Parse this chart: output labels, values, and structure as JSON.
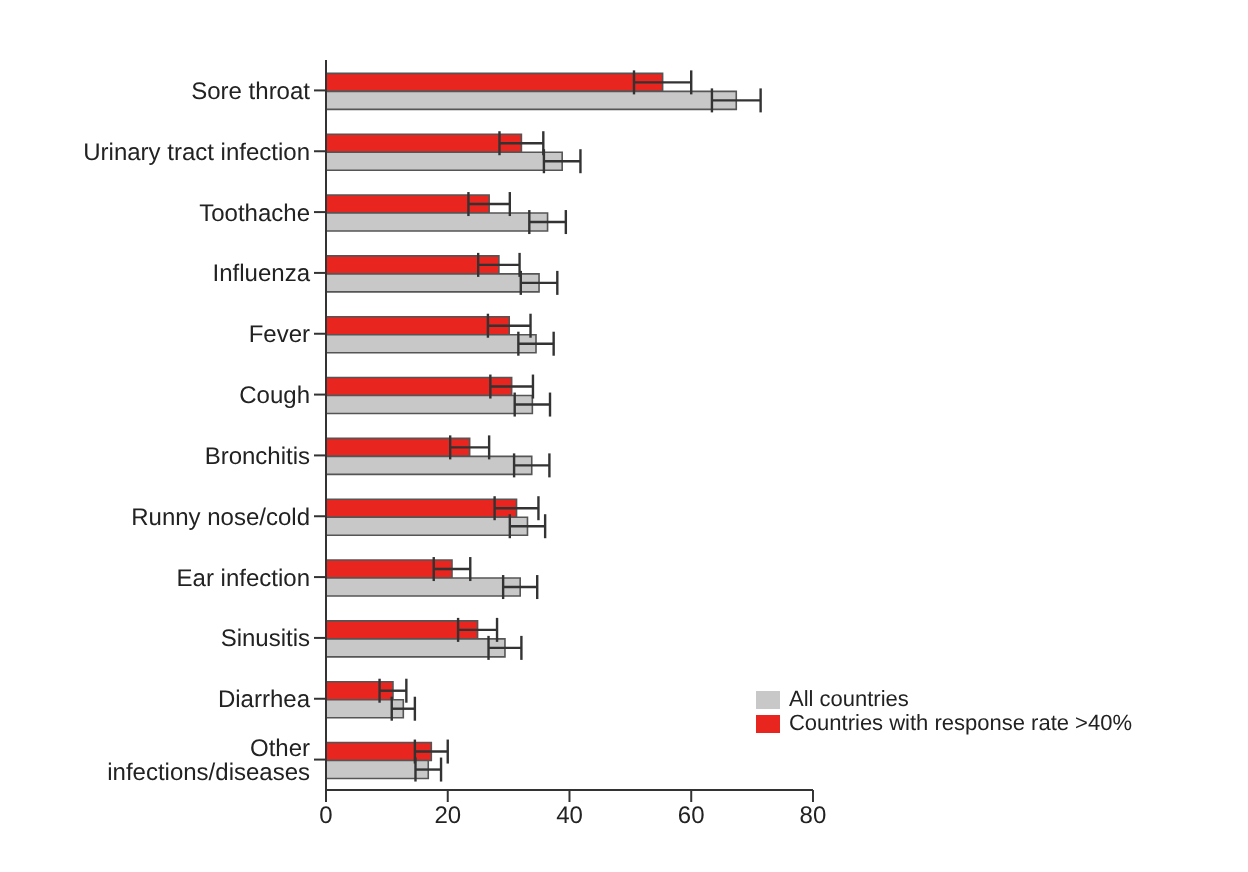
{
  "chart_data": {
    "type": "bar",
    "orientation": "horizontal",
    "categories": [
      "Sore throat",
      "Urinary tract infection",
      "Toothache",
      "Influenza",
      "Fever",
      "Cough",
      "Bronchitis",
      "Runny nose/cold",
      "Ear infection",
      "Sinusitis",
      "Diarrhea",
      "Other infections/diseases"
    ],
    "series": [
      {
        "name": "Countries with response rate >40%",
        "color": "#e8251f",
        "values": [
          55.3,
          32.1,
          26.8,
          28.4,
          30.1,
          30.5,
          23.6,
          31.3,
          20.7,
          24.9,
          11.0,
          17.3
        ],
        "errors": [
          4.7,
          3.6,
          3.4,
          3.4,
          3.5,
          3.5,
          3.2,
          3.6,
          3.0,
          3.2,
          2.2,
          2.7
        ]
      },
      {
        "name": "All countries",
        "color": "#c8c8c8",
        "values": [
          67.4,
          38.8,
          36.4,
          35.0,
          34.5,
          33.9,
          33.8,
          33.1,
          31.9,
          29.4,
          12.7,
          16.8
        ],
        "errors": [
          4.0,
          3.0,
          3.0,
          3.0,
          2.9,
          2.9,
          2.9,
          2.9,
          2.8,
          2.7,
          1.9,
          2.1
        ]
      }
    ],
    "xlim": [
      0,
      80
    ],
    "xticks": [
      0,
      20,
      40,
      60,
      80
    ],
    "grid": false,
    "legend": "bottom right"
  }
}
